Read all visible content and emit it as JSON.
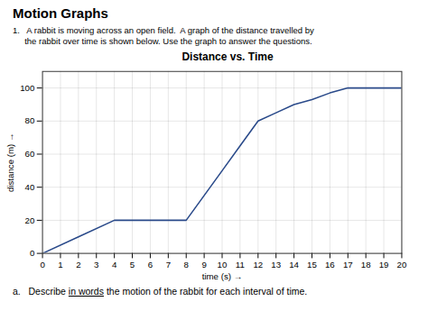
{
  "chart_data": {
    "type": "line",
    "title": "Motion Graphs",
    "subtitle": "Distance vs. Time",
    "annotations": [
      "1.   A rabbit is moving across an open field.  A graph of the distance travelled by",
      "     the rabbit over time is shown below. Use the graph to answer the questions.",
      [
        "a.   Describe ",
        "in words",
        " the motion of the rabbit for each interval of time."
      ]
    ],
    "xlabel": "time (s)",
    "ylabel": "distance (m)",
    "x": [
      0,
      2,
      4,
      5,
      6,
      7,
      8,
      9,
      10,
      11,
      12,
      13,
      14,
      15,
      16,
      17,
      18,
      19,
      20
    ],
    "values": [
      0,
      10,
      20,
      20,
      20,
      20,
      20,
      35,
      50,
      65,
      80,
      85,
      90,
      93,
      97,
      100,
      100,
      100,
      100
    ],
    "color": "#2a4a8a",
    "xlim": [
      0,
      20
    ],
    "ylim": [
      0,
      110
    ],
    "xticks": [
      0,
      1,
      2,
      3,
      4,
      5,
      6,
      7,
      8,
      9,
      10,
      11,
      12,
      13,
      14,
      15,
      16,
      17,
      18,
      19,
      20
    ],
    "yticks": [
      0,
      20,
      40,
      60,
      80,
      100
    ],
    "grid": true
  }
}
